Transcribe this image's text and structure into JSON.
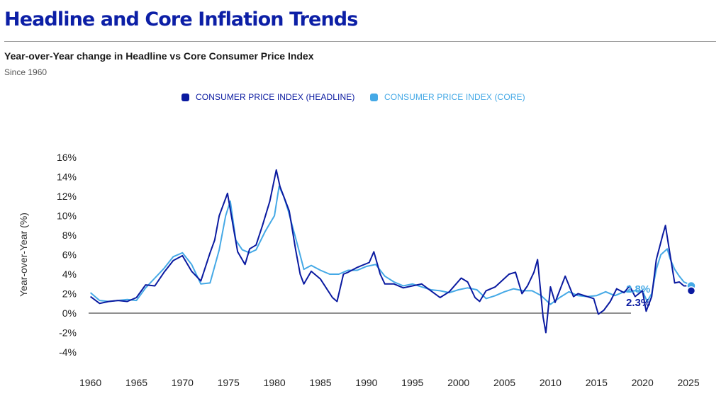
{
  "header": {
    "title": "Headline and Core Inflation Trends",
    "subtitle": "Year-over-Year change in Headline vs Core Consumer Price Index",
    "since": "Since 1960"
  },
  "colors": {
    "title": "#0c1fa6",
    "headline": "#0a1aa0",
    "core": "#45a9e6",
    "zero_line": "#222222"
  },
  "chart_data": {
    "type": "line",
    "title": "Headline and Core Inflation Trends",
    "ylabel": "Year-over-Year (%)",
    "xlabel": "",
    "xlim": [
      1958.8,
      2028
    ],
    "ylim": [
      -4,
      16
    ],
    "x_ticks": [
      1960,
      1965,
      1970,
      1975,
      1980,
      1985,
      1990,
      1995,
      2000,
      2005,
      2010,
      2015,
      2020,
      2025
    ],
    "x_tick_labels": [
      "1960",
      "1965",
      "1970",
      "1975",
      "1980",
      "1985",
      "1990",
      "1995",
      "2000",
      "2005",
      "2010",
      "2015",
      "2020",
      "2025"
    ],
    "y_ticks": [
      -4,
      -2,
      0,
      2,
      4,
      6,
      8,
      10,
      12,
      14,
      16
    ],
    "y_tick_labels": [
      "-4%",
      "-2%",
      "0%",
      "2%",
      "4%",
      "6%",
      "8%",
      "10%",
      "12%",
      "14%",
      "16%"
    ],
    "grid": false,
    "legend_position": "top-center",
    "series": [
      {
        "name": "CONSUMER PRICE INDEX (HEADLINE)",
        "end_label": "2.3%",
        "points": [
          [
            1960,
            1.7
          ],
          [
            1961,
            1.0
          ],
          [
            1962,
            1.2
          ],
          [
            1963,
            1.3
          ],
          [
            1964,
            1.2
          ],
          [
            1965,
            1.6
          ],
          [
            1966,
            2.9
          ],
          [
            1967,
            2.8
          ],
          [
            1968,
            4.2
          ],
          [
            1969,
            5.4
          ],
          [
            1970,
            5.9
          ],
          [
            1971,
            4.3
          ],
          [
            1972,
            3.3
          ],
          [
            1973,
            6.2
          ],
          [
            1973.5,
            7.5
          ],
          [
            1974,
            10.0
          ],
          [
            1974.9,
            12.3
          ],
          [
            1975.5,
            9.0
          ],
          [
            1976,
            6.3
          ],
          [
            1976.8,
            5.0
          ],
          [
            1977.3,
            6.6
          ],
          [
            1978,
            7.0
          ],
          [
            1978.7,
            9.0
          ],
          [
            1979.5,
            11.5
          ],
          [
            1980.2,
            14.7
          ],
          [
            1980.6,
            13.0
          ],
          [
            1981,
            12.0
          ],
          [
            1981.6,
            10.5
          ],
          [
            1982.3,
            6.5
          ],
          [
            1982.8,
            4.0
          ],
          [
            1983.2,
            3.0
          ],
          [
            1984,
            4.3
          ],
          [
            1985,
            3.5
          ],
          [
            1986.3,
            1.6
          ],
          [
            1986.8,
            1.2
          ],
          [
            1987.5,
            4.0
          ],
          [
            1988,
            4.2
          ],
          [
            1989,
            4.7
          ],
          [
            1990.3,
            5.2
          ],
          [
            1990.8,
            6.3
          ],
          [
            1991.5,
            4.0
          ],
          [
            1992,
            3.0
          ],
          [
            1993,
            3.0
          ],
          [
            1994,
            2.6
          ],
          [
            1995,
            2.8
          ],
          [
            1996,
            3.0
          ],
          [
            1997,
            2.3
          ],
          [
            1998,
            1.6
          ],
          [
            1999,
            2.2
          ],
          [
            2000.3,
            3.6
          ],
          [
            2001,
            3.2
          ],
          [
            2001.8,
            1.6
          ],
          [
            2002.3,
            1.2
          ],
          [
            2003,
            2.3
          ],
          [
            2004,
            2.7
          ],
          [
            2005.5,
            4.0
          ],
          [
            2006.2,
            4.2
          ],
          [
            2006.9,
            2.0
          ],
          [
            2007.5,
            2.8
          ],
          [
            2008.2,
            4.2
          ],
          [
            2008.6,
            5.5
          ],
          [
            2009.2,
            -0.4
          ],
          [
            2009.5,
            -2.0
          ],
          [
            2010,
            2.7
          ],
          [
            2010.5,
            1.1
          ],
          [
            2011.6,
            3.8
          ],
          [
            2012.5,
            1.7
          ],
          [
            2013,
            2.0
          ],
          [
            2014,
            1.7
          ],
          [
            2014.7,
            1.5
          ],
          [
            2015.2,
            -0.1
          ],
          [
            2015.8,
            0.3
          ],
          [
            2016.5,
            1.2
          ],
          [
            2017.2,
            2.5
          ],
          [
            2018,
            2.1
          ],
          [
            2018.6,
            2.8
          ],
          [
            2019.2,
            1.7
          ],
          [
            2020,
            2.3
          ],
          [
            2020.4,
            0.2
          ],
          [
            2021,
            1.7
          ],
          [
            2021.5,
            5.5
          ],
          [
            2022.2,
            8.0
          ],
          [
            2022.5,
            9.0
          ],
          [
            2023,
            6.0
          ],
          [
            2023.5,
            3.1
          ],
          [
            2024,
            3.2
          ],
          [
            2024.5,
            2.8
          ],
          [
            2025,
            2.8
          ],
          [
            2025.3,
            2.3
          ]
        ]
      },
      {
        "name": "CONSUMER PRICE INDEX (CORE)",
        "end_label": "2.8%",
        "points": [
          [
            1960,
            2.1
          ],
          [
            1961,
            1.3
          ],
          [
            1962,
            1.2
          ],
          [
            1963,
            1.3
          ],
          [
            1964,
            1.4
          ],
          [
            1965,
            1.3
          ],
          [
            1966,
            2.6
          ],
          [
            1967,
            3.6
          ],
          [
            1968,
            4.6
          ],
          [
            1969,
            5.8
          ],
          [
            1970,
            6.2
          ],
          [
            1971,
            5.0
          ],
          [
            1972,
            3.0
          ],
          [
            1973,
            3.1
          ],
          [
            1974,
            6.5
          ],
          [
            1974.7,
            10.0
          ],
          [
            1975.2,
            11.5
          ],
          [
            1975.8,
            7.5
          ],
          [
            1976.5,
            6.5
          ],
          [
            1977.3,
            6.2
          ],
          [
            1978,
            6.5
          ],
          [
            1979,
            8.4
          ],
          [
            1980,
            10.0
          ],
          [
            1980.5,
            13.0
          ],
          [
            1981,
            12.0
          ],
          [
            1981.5,
            10.5
          ],
          [
            1982.5,
            7.0
          ],
          [
            1983.2,
            4.5
          ],
          [
            1984,
            4.9
          ],
          [
            1985,
            4.4
          ],
          [
            1986,
            4.0
          ],
          [
            1987,
            4.0
          ],
          [
            1988,
            4.4
          ],
          [
            1989,
            4.4
          ],
          [
            1990,
            4.8
          ],
          [
            1991,
            5.0
          ],
          [
            1992,
            3.8
          ],
          [
            1993,
            3.2
          ],
          [
            1994,
            2.8
          ],
          [
            1995,
            3.0
          ],
          [
            1996,
            2.7
          ],
          [
            1997,
            2.4
          ],
          [
            1998,
            2.3
          ],
          [
            1999,
            2.1
          ],
          [
            2000,
            2.4
          ],
          [
            2001,
            2.6
          ],
          [
            2002,
            2.4
          ],
          [
            2003,
            1.5
          ],
          [
            2004,
            1.8
          ],
          [
            2005,
            2.2
          ],
          [
            2006,
            2.5
          ],
          [
            2007,
            2.3
          ],
          [
            2008,
            2.3
          ],
          [
            2009,
            1.8
          ],
          [
            2010,
            0.9
          ],
          [
            2011,
            1.6
          ],
          [
            2012,
            2.2
          ],
          [
            2013,
            1.8
          ],
          [
            2014,
            1.7
          ],
          [
            2015,
            1.8
          ],
          [
            2016,
            2.2
          ],
          [
            2017,
            1.8
          ],
          [
            2018,
            2.2
          ],
          [
            2019,
            2.3
          ],
          [
            2020,
            2.3
          ],
          [
            2020.5,
            1.2
          ],
          [
            2021,
            2.0
          ],
          [
            2021.5,
            4.5
          ],
          [
            2022,
            6.0
          ],
          [
            2022.7,
            6.6
          ],
          [
            2023,
            5.6
          ],
          [
            2023.5,
            4.5
          ],
          [
            2024,
            3.8
          ],
          [
            2024.5,
            3.2
          ],
          [
            2025,
            3.0
          ],
          [
            2025.3,
            2.8
          ]
        ]
      }
    ]
  }
}
